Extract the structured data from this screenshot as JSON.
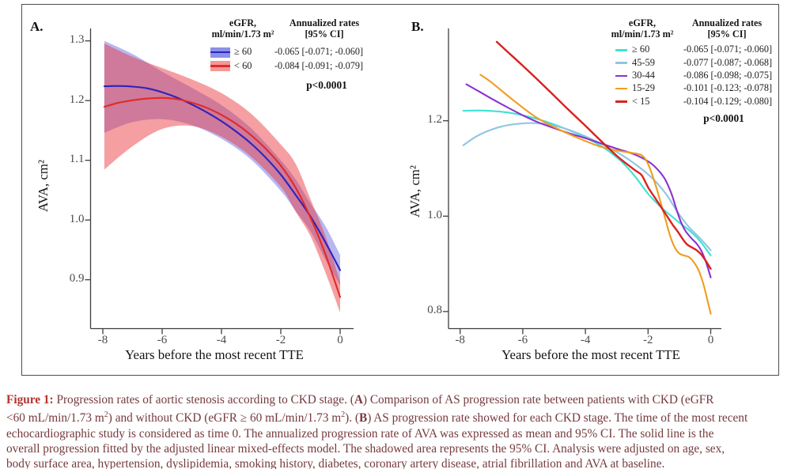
{
  "figure": {
    "caption_lines": [
      [
        {
          "text": "Figure 1: ",
          "bold": true,
          "accent": true
        },
        {
          "text": "Progression rates of aortic stenosis according to CKD stage. ("
        },
        {
          "text": "A",
          "bold": true
        },
        {
          "text": ") Comparison of AS progression rate between patients with CKD (eGFR"
        }
      ],
      [
        {
          "text": "<60 mL/min/1.73 m"
        },
        {
          "text": "2",
          "sup": true
        },
        {
          "text": ") and without CKD (eGFR ≥ 60 mL/min/1.73 m"
        },
        {
          "text": "2",
          "sup": true
        },
        {
          "text": "). ("
        },
        {
          "text": "B",
          "bold": true
        },
        {
          "text": ") AS progression rate showed for each CKD stage. The time of the most recent"
        }
      ],
      [
        {
          "text": "echocardiographic study is considered as time 0. The annualized progression rate of AVA was expressed as mean and 95% CI. The solid line is the"
        }
      ],
      [
        {
          "text": "overall progression fitted by the adjusted linear mixed-effects model. The shadowed area represents the 95% CI. Analysis were adjusted on age, sex,"
        }
      ],
      [
        {
          "text": "body surface area, hypertension, dyslipidemia, smoking history, diabetes, coronary artery disease, atrial fibrillation and AVA at baseline."
        }
      ]
    ]
  },
  "chart_data": [
    {
      "type": "line",
      "panel_label": "A.",
      "xlabel": "Years before the most recent TTE",
      "ylabel": "AVA, cm²",
      "xlim": [
        -8.45,
        0.45
      ],
      "ylim": [
        0.76,
        1.395
      ],
      "xticks": [
        {
          "v": -8,
          "label": "-8"
        },
        {
          "v": -6,
          "label": "-6"
        },
        {
          "v": -4,
          "label": "-4"
        },
        {
          "v": -2,
          "label": "-2"
        },
        {
          "v": 0,
          "label": "0"
        }
      ],
      "yticks": [
        {
          "v": 0.9,
          "label": "0.9"
        },
        {
          "v": 1.0,
          "label": "1.0"
        },
        {
          "v": 1.1,
          "label": "1.1"
        },
        {
          "v": 1.2,
          "label": "1.2"
        },
        {
          "v": 1.3,
          "label": "1.3"
        }
      ],
      "legend": {
        "header_col1_line1": "eGFR,",
        "header_col1_line2": "ml/min/1.73 m²",
        "header_col2_line1": "Annualized rates",
        "header_col2_line2": "[95% CI]",
        "p_value": "p<0.0001"
      },
      "series": [
        {
          "name": "≥ 60",
          "rate": "-0.065 [-0.071; -0.060]",
          "color": "#2d23bb",
          "band_fill": "rgba(95,95,225,0.45)",
          "band_swatch": "#8b90e8",
          "points": [
            [
              -7.95,
              1.224
            ],
            [
              -7.5,
              1.2245
            ],
            [
              -7,
              1.2235
            ],
            [
              -6.5,
              1.2205
            ],
            [
              -6,
              1.214
            ],
            [
              -5.5,
              1.205
            ],
            [
              -5,
              1.1935
            ],
            [
              -4.5,
              1.1805
            ],
            [
              -4,
              1.1655
            ],
            [
              -3.5,
              1.148
            ],
            [
              -3,
              1.128
            ],
            [
              -2.5,
              1.104
            ],
            [
              -2,
              1.076
            ],
            [
              -1.5,
              1.042
            ],
            [
              -1,
              1.006
            ],
            [
              -0.5,
              0.963
            ],
            [
              0,
              0.916
            ]
          ],
          "band_upper": [
            [
              -7.95,
              1.3
            ],
            [
              -7,
              1.278
            ],
            [
              -6,
              1.2485
            ],
            [
              -5,
              1.2215
            ],
            [
              -4,
              1.1925
            ],
            [
              -3,
              1.1535
            ],
            [
              -2,
              1.1
            ],
            [
              -1.5,
              1.068
            ],
            [
              -1,
              1.028
            ],
            [
              -0.5,
              0.99
            ],
            [
              0,
              0.9415
            ]
          ],
          "band_lower": [
            [
              -7.95,
              1.146
            ],
            [
              -7,
              1.164
            ],
            [
              -6,
              1.169
            ],
            [
              -5,
              1.159
            ],
            [
              -4,
              1.136
            ],
            [
              -3,
              1.101
            ],
            [
              -2,
              1.049
            ],
            [
              -1.5,
              1.015
            ],
            [
              -1,
              0.981
            ],
            [
              -0.5,
              0.934
            ],
            [
              0,
              0.891
            ]
          ]
        },
        {
          "name": "< 60",
          "rate": "-0.084 [-0.091; -0.079]",
          "color": "#e12a26",
          "band_fill": "rgba(235,55,60,0.48)",
          "band_swatch": "#f29898",
          "points": [
            [
              -7.95,
              1.1895
            ],
            [
              -7.5,
              1.196
            ],
            [
              -7,
              1.2005
            ],
            [
              -6.5,
              1.2035
            ],
            [
              -6,
              1.2045
            ],
            [
              -5.5,
              1.2025
            ],
            [
              -5,
              1.1965
            ],
            [
              -4.5,
              1.188
            ],
            [
              -4,
              1.176
            ],
            [
              -3.5,
              1.161
            ],
            [
              -3,
              1.142
            ],
            [
              -2.5,
              1.119
            ],
            [
              -2,
              1.091
            ],
            [
              -1.5,
              1.054
            ],
            [
              -1,
              1.004
            ],
            [
              -0.5,
              0.943
            ],
            [
              0,
              0.871
            ]
          ],
          "band_upper": [
            [
              -7.95,
              1.2955
            ],
            [
              -7,
              1.2735
            ],
            [
              -6,
              1.2545
            ],
            [
              -5,
              1.2355
            ],
            [
              -4,
              1.2125
            ],
            [
              -3,
              1.178
            ],
            [
              -2,
              1.1265
            ],
            [
              -1.5,
              1.094
            ],
            [
              -1,
              1.035
            ],
            [
              -0.5,
              0.9735
            ],
            [
              0,
              0.897
            ]
          ],
          "band_lower": [
            [
              -7.95,
              1.0845
            ],
            [
              -7,
              1.1235
            ],
            [
              -6,
              1.1525
            ],
            [
              -5,
              1.1575
            ],
            [
              -4,
              1.1395
            ],
            [
              -3,
              1.106
            ],
            [
              -2,
              1.0555
            ],
            [
              -1.5,
              1.014
            ],
            [
              -1,
              0.973
            ],
            [
              -0.5,
              0.9125
            ],
            [
              0,
              0.845
            ]
          ]
        }
      ]
    },
    {
      "type": "line",
      "panel_label": "B.",
      "xlabel": "Years before the most recent TTE",
      "ylabel": "AVA, cm²",
      "xlim": [
        -8.45,
        0.45
      ],
      "ylim": [
        0.76,
        1.395
      ],
      "xticks": [
        {
          "v": -8,
          "label": "-8"
        },
        {
          "v": -6,
          "label": "-6"
        },
        {
          "v": -4,
          "label": "-4"
        },
        {
          "v": -2,
          "label": "-2"
        },
        {
          "v": 0,
          "label": "0"
        }
      ],
      "yticks": [
        {
          "v": 0.8,
          "label": "0.8"
        },
        {
          "v": 1.0,
          "label": "1.0"
        },
        {
          "v": 1.2,
          "label": "1.2"
        }
      ],
      "legend": {
        "header_col1_line1": "eGFR,",
        "header_col1_line2": "ml/min/1.73 m²",
        "header_col2_line1": "Annualized rates",
        "header_col2_line2": "[95% CI]",
        "p_value": "p<0.0001"
      },
      "series": [
        {
          "name": "≥ 60",
          "rate": "-0.065 [-0.071; -0.060]",
          "color": "#3fe2d4",
          "points": [
            [
              -7.9,
              1.221
            ],
            [
              -7.4,
              1.2215
            ],
            [
              -7,
              1.2205
            ],
            [
              -6.5,
              1.2175
            ],
            [
              -6,
              1.2115
            ],
            [
              -5.5,
              1.203
            ],
            [
              -5,
              1.1925
            ],
            [
              -4.5,
              1.1795
            ],
            [
              -4,
              1.1645
            ],
            [
              -3.6,
              1.151
            ],
            [
              -3.2,
              1.1335
            ],
            [
              -2.8,
              1.1115
            ],
            [
              -2.4,
              1.082
            ],
            [
              -2,
              1.047
            ],
            [
              -1.7,
              1.026
            ],
            [
              -1.4,
              1.008
            ],
            [
              -1,
              0.9865
            ],
            [
              -0.6,
              0.9655
            ],
            [
              -0.3,
              0.9445
            ],
            [
              0,
              0.9175
            ]
          ]
        },
        {
          "name": "45-59",
          "rate": "-0.077 [-0.087; -0.068]",
          "color": "#8fc6e2",
          "points": [
            [
              -7.9,
              1.1485
            ],
            [
              -7.5,
              1.1665
            ],
            [
              -7,
              1.1815
            ],
            [
              -6.5,
              1.1905
            ],
            [
              -6,
              1.1945
            ],
            [
              -5.6,
              1.195
            ],
            [
              -5.2,
              1.1925
            ],
            [
              -4.8,
              1.1865
            ],
            [
              -4.4,
              1.178
            ],
            [
              -4,
              1.1675
            ],
            [
              -3.6,
              1.155
            ],
            [
              -3.2,
              1.1415
            ],
            [
              -2.8,
              1.1265
            ],
            [
              -2.4,
              1.1085
            ],
            [
              -2,
              1.0875
            ],
            [
              -1.7,
              1.0685
            ],
            [
              -1.4,
              1.044
            ],
            [
              -1.15,
              1.018
            ],
            [
              -0.95,
              0.9985
            ],
            [
              -0.7,
              0.9775
            ],
            [
              -0.4,
              0.9575
            ],
            [
              -0.2,
              0.9435
            ],
            [
              0,
              0.9285
            ]
          ]
        },
        {
          "name": "30-44",
          "rate": "-0.086 [-0.098; -0.075]",
          "color": "#8c32cf",
          "points": [
            [
              -7.8,
              1.2765
            ],
            [
              -7.4,
              1.2615
            ],
            [
              -7,
              1.2465
            ],
            [
              -6.5,
              1.2285
            ],
            [
              -6,
              1.2115
            ],
            [
              -5.5,
              1.1965
            ],
            [
              -5,
              1.1845
            ],
            [
              -4.5,
              1.1735
            ],
            [
              -4,
              1.1635
            ],
            [
              -3.5,
              1.1525
            ],
            [
              -3,
              1.1415
            ],
            [
              -2.6,
              1.1335
            ],
            [
              -2.2,
              1.1225
            ],
            [
              -1.9,
              1.1105
            ],
            [
              -1.65,
              1.0945
            ],
            [
              -1.45,
              1.0765
            ],
            [
              -1.25,
              1.0465
            ],
            [
              -1.1,
              1.0155
            ],
            [
              -0.95,
              0.9875
            ],
            [
              -0.8,
              0.9685
            ],
            [
              -0.6,
              0.9525
            ],
            [
              -0.45,
              0.9425
            ],
            [
              -0.3,
              0.9275
            ],
            [
              -0.15,
              0.9035
            ],
            [
              0,
              0.8715
            ]
          ]
        },
        {
          "name": "15-29",
          "rate": "-0.101 [-0.123; -0.078]",
          "color": "#f09c1f",
          "points": [
            [
              -7.35,
              1.2965
            ],
            [
              -7,
              1.2805
            ],
            [
              -6.5,
              1.2535
            ],
            [
              -6,
              1.2275
            ],
            [
              -5.6,
              1.2085
            ],
            [
              -5.2,
              1.1935
            ],
            [
              -4.8,
              1.1805
            ],
            [
              -4.4,
              1.1685
            ],
            [
              -4,
              1.1575
            ],
            [
              -3.6,
              1.1475
            ],
            [
              -3.2,
              1.1405
            ],
            [
              -2.8,
              1.1355
            ],
            [
              -2.5,
              1.1325
            ],
            [
              -2.2,
              1.1275
            ],
            [
              -2,
              1.1095
            ],
            [
              -1.8,
              1.0735
            ],
            [
              -1.6,
              1.0295
            ],
            [
              -1.45,
              0.9945
            ],
            [
              -1.3,
              0.9595
            ],
            [
              -1.15,
              0.9345
            ],
            [
              -1,
              0.9215
            ],
            [
              -0.85,
              0.9175
            ],
            [
              -0.7,
              0.9145
            ],
            [
              -0.55,
              0.9045
            ],
            [
              -0.4,
              0.8885
            ],
            [
              -0.3,
              0.8715
            ],
            [
              -0.2,
              0.8495
            ],
            [
              -0.1,
              0.8225
            ],
            [
              0,
              0.7955
            ]
          ]
        },
        {
          "name": "< 15",
          "rate": "-0.104 [-0.129; -0.080]",
          "color": "#d8231f",
          "width": 2.4,
          "points": [
            [
              -6.83,
              1.3655
            ],
            [
              -6.5,
              1.3455
            ],
            [
              -6,
              1.3155
            ],
            [
              -5.5,
              1.2845
            ],
            [
              -5,
              1.2525
            ],
            [
              -4.5,
              1.2205
            ],
            [
              -4,
              1.1895
            ],
            [
              -3.5,
              1.1575
            ],
            [
              -3,
              1.1265
            ],
            [
              -2.7,
              1.1105
            ],
            [
              -2.4,
              1.0955
            ],
            [
              -2.2,
              1.0855
            ],
            [
              -2,
              1.0605
            ],
            [
              -1.8,
              1.0405
            ],
            [
              -1.6,
              1.0205
            ],
            [
              -1.4,
              1.0005
            ],
            [
              -1.2,
              0.9805
            ],
            [
              -1.05,
              0.9675
            ],
            [
              -0.9,
              0.9525
            ],
            [
              -0.75,
              0.9405
            ],
            [
              -0.6,
              0.9345
            ],
            [
              -0.45,
              0.9285
            ],
            [
              -0.3,
              0.9195
            ],
            [
              -0.15,
              0.9055
            ],
            [
              0,
              0.8895
            ]
          ]
        }
      ]
    }
  ]
}
